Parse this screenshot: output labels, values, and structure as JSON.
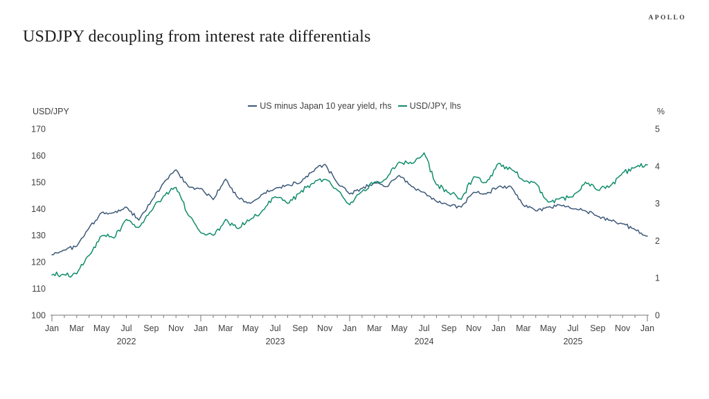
{
  "header": {
    "title": "USDJPY decoupling from interest rate differentials",
    "brand": "APOLLO"
  },
  "chart_data": {
    "type": "line",
    "title": "USDJPY decoupling from interest rate differentials",
    "grid": false,
    "legend_position": "top-center",
    "left_axis": {
      "label": "USD/JPY",
      "range": [
        100,
        170
      ],
      "tick_step": 10
    },
    "right_axis": {
      "label": "%",
      "range": [
        0,
        5
      ],
      "tick_step": 1
    },
    "x_tick_label_months": [
      "Jan",
      "Mar",
      "May",
      "Jul",
      "Sep",
      "Nov"
    ],
    "year_labels": [
      "2022",
      "2023",
      "2024",
      "2025"
    ],
    "x": [
      "Jan 2022",
      "Feb 2022",
      "Mar 2022",
      "Apr 2022",
      "May 2022",
      "Jun 2022",
      "Jul 2022",
      "Aug 2022",
      "Sep 2022",
      "Oct 2022",
      "Nov 2022",
      "Dec 2022",
      "Jan 2023",
      "Feb 2023",
      "Mar 2023",
      "Apr 2023",
      "May 2023",
      "Jun 2023",
      "Jul 2023",
      "Aug 2023",
      "Sep 2023",
      "Oct 2023",
      "Nov 2023",
      "Dec 2023",
      "Jan 2024",
      "Feb 2024",
      "Mar 2024",
      "Apr 2024",
      "May 2024",
      "Jun 2024",
      "Jul 2024",
      "Aug 2024",
      "Sep 2024",
      "Oct 2024",
      "Nov 2024",
      "Dec 2024",
      "Jan 2025",
      "Feb 2025",
      "Mar 2025",
      "Apr 2025",
      "May 2025",
      "Jun 2025",
      "Jul 2025",
      "Aug 2025",
      "Sep 2025",
      "Oct 2025",
      "Nov 2025",
      "Dec 2025",
      "Jan 2026"
    ],
    "series": [
      {
        "name": "US minus Japan 10 year yield, rhs",
        "axis": "right",
        "color": "#3C5878",
        "values": [
          1.62,
          1.75,
          1.85,
          2.35,
          2.75,
          2.75,
          2.9,
          2.55,
          3.05,
          3.55,
          3.9,
          3.45,
          3.4,
          3.1,
          3.65,
          3.15,
          3.0,
          3.25,
          3.4,
          3.5,
          3.55,
          3.85,
          4.05,
          3.55,
          3.25,
          3.4,
          3.55,
          3.45,
          3.75,
          3.45,
          3.3,
          3.05,
          2.95,
          2.9,
          3.3,
          3.25,
          3.45,
          3.45,
          2.95,
          2.8,
          2.9,
          2.95,
          2.85,
          2.8,
          2.65,
          2.55,
          2.45,
          2.3,
          2.12
        ]
      },
      {
        "name": "USD/JPY, lhs",
        "axis": "left",
        "color": "#0F8C6B",
        "values": [
          115.1,
          115.2,
          115.5,
          122.5,
          129.8,
          129.0,
          136.0,
          133.0,
          139.0,
          144.8,
          148.0,
          137.5,
          131.0,
          130.0,
          136.0,
          132.5,
          136.0,
          139.5,
          144.5,
          142.0,
          146.0,
          149.5,
          151.0,
          147.0,
          141.5,
          146.5,
          150.0,
          151.5,
          157.5,
          157.0,
          161.0,
          149.0,
          146.0,
          143.5,
          152.0,
          149.8,
          157.0,
          155.0,
          150.5,
          149.5,
          142.5,
          144.0,
          144.5,
          150.0,
          147.0,
          148.5,
          153.5,
          155.5,
          156.5
        ]
      }
    ]
  }
}
